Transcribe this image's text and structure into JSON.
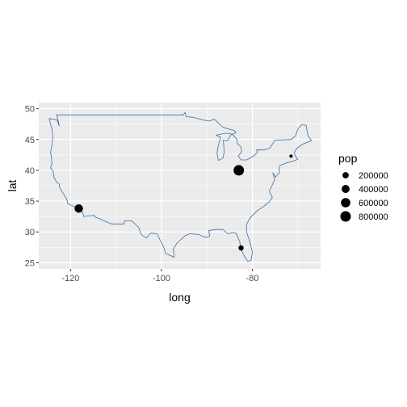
{
  "chart_data": {
    "type": "scatter",
    "title": "",
    "xlabel": "long",
    "ylabel": "lat",
    "xlim": [
      -127,
      -65
    ],
    "ylim": [
      24,
      51
    ],
    "x_ticks": [
      -120,
      -100,
      -80
    ],
    "y_ticks": [
      25,
      30,
      35,
      40,
      45,
      50
    ],
    "x_tick_labels": [
      "-120",
      "-100",
      "-80"
    ],
    "y_tick_labels": [
      "25",
      "30",
      "35",
      "40",
      "45",
      "50"
    ],
    "grid": true,
    "panel_background": "#EBEBEB",
    "grid_color": "#FFFFFF",
    "map_outline_color": "#3A6EA5",
    "point_color": "#000000",
    "legend": {
      "title": "pop",
      "placement": "right",
      "entries": [
        {
          "label": "200000",
          "value": 200000
        },
        {
          "label": "400000",
          "value": 400000
        },
        {
          "label": "600000",
          "value": 600000
        },
        {
          "label": "800000",
          "value": 800000
        }
      ]
    },
    "points": [
      {
        "long": -118.2,
        "lat": 33.8,
        "pop": 460000
      },
      {
        "long": -83.0,
        "lat": 40.0,
        "pop": 800000
      },
      {
        "long": -82.5,
        "lat": 27.4,
        "pop": 120000
      },
      {
        "long": -71.5,
        "lat": 42.3,
        "pop": 20000
      }
    ],
    "outline": [
      [
        -124.7,
        48.4
      ],
      [
        -123.0,
        48.2
      ],
      [
        -122.5,
        47.2
      ],
      [
        -122.7,
        48.0
      ],
      [
        -123.1,
        49.0
      ],
      [
        -95.2,
        49.0
      ],
      [
        -94.8,
        49.4
      ],
      [
        -94.6,
        48.7
      ],
      [
        -93.0,
        48.6
      ],
      [
        -91.0,
        48.2
      ],
      [
        -89.5,
        48.0
      ],
      [
        -88.4,
        48.3
      ],
      [
        -86.5,
        47.0
      ],
      [
        -84.7,
        46.6
      ],
      [
        -84.1,
        46.5
      ],
      [
        -83.6,
        46.1
      ],
      [
        -84.7,
        45.8
      ],
      [
        -85.5,
        44.8
      ],
      [
        -86.4,
        44.9
      ],
      [
        -86.2,
        43.0
      ],
      [
        -86.5,
        42.0
      ],
      [
        -87.5,
        41.6
      ],
      [
        -87.8,
        42.8
      ],
      [
        -87.5,
        44.0
      ],
      [
        -87.0,
        45.4
      ],
      [
        -88.0,
        45.7
      ],
      [
        -86.0,
        46.0
      ],
      [
        -85.0,
        46.0
      ],
      [
        -84.2,
        45.7
      ],
      [
        -83.4,
        45.0
      ],
      [
        -83.3,
        44.3
      ],
      [
        -82.5,
        43.8
      ],
      [
        -82.4,
        43.0
      ],
      [
        -83.1,
        42.3
      ],
      [
        -82.5,
        41.7
      ],
      [
        -81.2,
        41.7
      ],
      [
        -79.8,
        42.3
      ],
      [
        -78.9,
        42.9
      ],
      [
        -79.1,
        43.3
      ],
      [
        -77.5,
        43.3
      ],
      [
        -76.2,
        43.6
      ],
      [
        -75.0,
        44.9
      ],
      [
        -71.5,
        45.0
      ],
      [
        -70.5,
        45.6
      ],
      [
        -70.0,
        46.7
      ],
      [
        -69.2,
        47.4
      ],
      [
        -68.2,
        47.3
      ],
      [
        -67.8,
        45.7
      ],
      [
        -67.0,
        44.8
      ],
      [
        -68.8,
        44.3
      ],
      [
        -70.2,
        43.6
      ],
      [
        -70.8,
        42.9
      ],
      [
        -70.6,
        42.4
      ],
      [
        -70.0,
        41.8
      ],
      [
        -71.0,
        41.5
      ],
      [
        -72.5,
        41.2
      ],
      [
        -73.9,
        40.8
      ],
      [
        -74.1,
        40.4
      ],
      [
        -74.0,
        39.7
      ],
      [
        -74.9,
        38.9
      ],
      [
        -75.5,
        39.6
      ],
      [
        -75.1,
        38.5
      ],
      [
        -76.0,
        37.0
      ],
      [
        -76.3,
        36.6
      ],
      [
        -75.6,
        35.6
      ],
      [
        -76.4,
        34.8
      ],
      [
        -77.8,
        34.0
      ],
      [
        -79.0,
        33.4
      ],
      [
        -80.5,
        32.3
      ],
      [
        -81.3,
        31.2
      ],
      [
        -81.3,
        30.0
      ],
      [
        -80.6,
        28.5
      ],
      [
        -80.0,
        26.7
      ],
      [
        -80.3,
        25.4
      ],
      [
        -81.0,
        25.2
      ],
      [
        -81.8,
        26.1
      ],
      [
        -82.6,
        27.4
      ],
      [
        -82.8,
        28.5
      ],
      [
        -83.6,
        29.8
      ],
      [
        -84.4,
        29.9
      ],
      [
        -85.4,
        29.7
      ],
      [
        -86.5,
        30.4
      ],
      [
        -88.1,
        30.4
      ],
      [
        -89.6,
        30.2
      ],
      [
        -89.4,
        29.3
      ],
      [
        -90.4,
        29.1
      ],
      [
        -91.8,
        29.6
      ],
      [
        -93.8,
        29.7
      ],
      [
        -94.8,
        29.4
      ],
      [
        -96.6,
        28.2
      ],
      [
        -97.4,
        27.2
      ],
      [
        -97.2,
        25.9
      ],
      [
        -99.1,
        26.5
      ],
      [
        -99.5,
        27.5
      ],
      [
        -101.0,
        29.7
      ],
      [
        -102.4,
        29.8
      ],
      [
        -103.3,
        29.0
      ],
      [
        -104.5,
        29.6
      ],
      [
        -105.0,
        30.7
      ],
      [
        -106.5,
        31.8
      ],
      [
        -108.2,
        31.8
      ],
      [
        -108.2,
        31.3
      ],
      [
        -111.0,
        31.3
      ],
      [
        -114.8,
        32.5
      ],
      [
        -114.7,
        32.7
      ],
      [
        -117.1,
        32.5
      ],
      [
        -117.3,
        33.1
      ],
      [
        -118.4,
        33.8
      ],
      [
        -119.2,
        34.1
      ],
      [
        -120.6,
        34.6
      ],
      [
        -120.9,
        35.4
      ],
      [
        -121.9,
        36.6
      ],
      [
        -122.4,
        37.2
      ],
      [
        -122.5,
        37.8
      ],
      [
        -123.0,
        38.0
      ],
      [
        -123.7,
        38.9
      ],
      [
        -123.8,
        39.8
      ],
      [
        -124.4,
        40.4
      ],
      [
        -124.1,
        41.0
      ],
      [
        -124.2,
        42.0
      ],
      [
        -124.4,
        42.9
      ],
      [
        -124.1,
        44.1
      ],
      [
        -123.9,
        45.5
      ],
      [
        -124.0,
        46.3
      ],
      [
        -124.2,
        46.9
      ],
      [
        -124.7,
        48.4
      ]
    ]
  }
}
